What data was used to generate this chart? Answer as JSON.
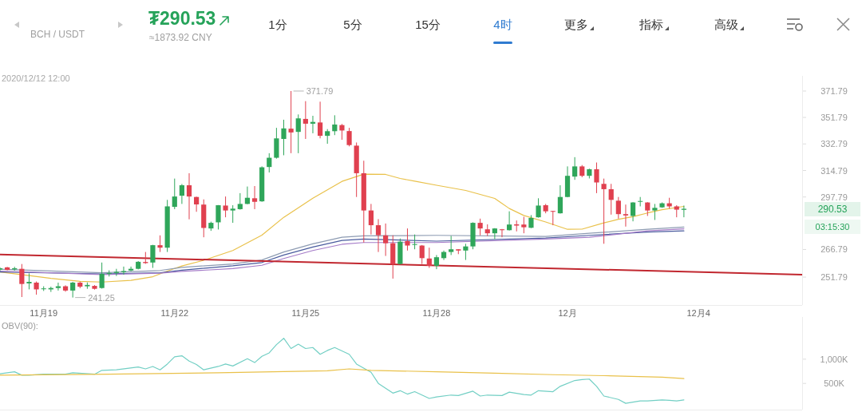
{
  "chart_data": [
    {
      "type": "candlestick",
      "title": "BCH / USDT",
      "subtitle": "₮290.53",
      "x": [
        "2020-11-18T00:00",
        "2020-11-18T04:00",
        "2020-11-18T08:00",
        "2020-11-18T12:00",
        "2020-11-18T16:00",
        "2020-11-18T20:00",
        "2020-11-19T00:00",
        "2020-11-19T04:00",
        "2020-11-19T08:00",
        "2020-11-19T12:00",
        "2020-11-19T16:00",
        "2020-11-19T20:00",
        "2020-11-20T00:00",
        "2020-11-20T04:00",
        "2020-11-20T08:00",
        "2020-11-20T12:00",
        "2020-11-20T16:00",
        "2020-11-20T20:00",
        "2020-11-21T00:00",
        "2020-11-21T04:00",
        "2020-11-21T08:00",
        "2020-11-21T12:00",
        "2020-11-21T16:00",
        "2020-11-21T20:00",
        "2020-11-22T00:00",
        "2020-11-22T04:00",
        "2020-11-22T08:00",
        "2020-11-22T12:00",
        "2020-11-22T16:00",
        "2020-11-22T20:00",
        "2020-11-23T00:00",
        "2020-11-23T04:00",
        "2020-11-23T08:00",
        "2020-11-23T12:00",
        "2020-11-23T16:00",
        "2020-11-23T20:00",
        "2020-11-24T00:00",
        "2020-11-24T04:00",
        "2020-11-24T08:00",
        "2020-11-24T12:00",
        "2020-11-24T16:00",
        "2020-11-24T20:00",
        "2020-11-25T00:00",
        "2020-11-25T04:00",
        "2020-11-25T08:00",
        "2020-11-25T12:00",
        "2020-11-25T16:00",
        "2020-11-25T20:00",
        "2020-11-26T00:00",
        "2020-11-26T04:00",
        "2020-11-26T08:00",
        "2020-11-26T12:00",
        "2020-11-26T16:00",
        "2020-11-26T20:00",
        "2020-11-27T00:00",
        "2020-11-27T04:00",
        "2020-11-27T08:00",
        "2020-11-27T12:00",
        "2020-11-27T16:00",
        "2020-11-27T20:00",
        "2020-11-28T00:00",
        "2020-11-28T04:00",
        "2020-11-28T08:00",
        "2020-11-28T12:00",
        "2020-11-28T16:00",
        "2020-11-28T20:00",
        "2020-11-29T00:00",
        "2020-11-29T04:00",
        "2020-11-29T08:00",
        "2020-11-29T12:00",
        "2020-11-29T16:00",
        "2020-11-29T20:00",
        "2020-11-30T00:00",
        "2020-11-30T04:00",
        "2020-11-30T08:00",
        "2020-11-30T12:00",
        "2020-11-30T16:00",
        "2020-11-30T20:00",
        "2020-12-01T00:00",
        "2020-12-01T04:00",
        "2020-12-01T08:00",
        "2020-12-01T12:00",
        "2020-12-01T16:00",
        "2020-12-01T20:00",
        "2020-12-02T00:00",
        "2020-12-02T04:00",
        "2020-12-02T08:00",
        "2020-12-02T12:00",
        "2020-12-02T16:00",
        "2020-12-02T20:00",
        "2020-12-03T00:00",
        "2020-12-03T04:00",
        "2020-12-03T08:00",
        "2020-12-03T12:00",
        "2020-12-03T16:00"
      ],
      "ohlc": [
        [
          255.8,
          257.0,
          255.0,
          256.5
        ],
        [
          257.0,
          257.2,
          255.4,
          255.6
        ],
        [
          255.9,
          257.3,
          255.2,
          256.5
        ],
        [
          256.2,
          258.8,
          241.5,
          248.2
        ],
        [
          248.5,
          253.8,
          245.4,
          249.3
        ],
        [
          248.9,
          249.5,
          242.7,
          245.4
        ],
        [
          245.6,
          247.0,
          244.6,
          245.9
        ],
        [
          245.4,
          246.8,
          244.1,
          246.1
        ],
        [
          246.1,
          248.9,
          244.8,
          247.0
        ],
        [
          247.0,
          247.5,
          244.2,
          244.8
        ],
        [
          244.8,
          249.3,
          241.25,
          248.9
        ],
        [
          248.9,
          249.4,
          246.0,
          246.8
        ],
        [
          247.0,
          249.0,
          245.7,
          247.7
        ],
        [
          247.2,
          247.6,
          245.3,
          245.7
        ],
        [
          246.1,
          259.6,
          245.8,
          253.5
        ],
        [
          253.5,
          255.4,
          252.1,
          254.0
        ],
        [
          254.0,
          256.2,
          252.4,
          254.6
        ],
        [
          254.4,
          257.4,
          253.1,
          255.0
        ],
        [
          255.3,
          257.4,
          254.9,
          256.2
        ],
        [
          256.2,
          260.4,
          255.9,
          260.0
        ],
        [
          259.9,
          265.4,
          258.9,
          259.3
        ],
        [
          259.6,
          269.4,
          256.7,
          269.2
        ],
        [
          269.2,
          274.8,
          265.4,
          267.8
        ],
        [
          267.8,
          296.0,
          265.4,
          292.0
        ],
        [
          291.7,
          309.5,
          290.3,
          298.1
        ],
        [
          298.6,
          306.0,
          293.5,
          305.2
        ],
        [
          305.2,
          313.0,
          284.2,
          298.1
        ],
        [
          297.8,
          298.0,
          288.7,
          293.2
        ],
        [
          293.1,
          296.3,
          273.7,
          279.1
        ],
        [
          278.8,
          282.8,
          277.4,
          282.1
        ],
        [
          282.4,
          292.8,
          278.2,
          292.7
        ],
        [
          292.5,
          298.1,
          285.4,
          289.5
        ],
        [
          289.5,
          292.7,
          282.1,
          290.6
        ],
        [
          290.3,
          300.2,
          290.0,
          293.5
        ],
        [
          293.5,
          304.4,
          293.3,
          297.3
        ],
        [
          297.0,
          304.7,
          290.3,
          294.8
        ],
        [
          295.1,
          317.5,
          294.8,
          316.9
        ],
        [
          317.1,
          326.4,
          313.5,
          323.3
        ],
        [
          323.3,
          344.2,
          322.7,
          336.7
        ],
        [
          336.3,
          350.1,
          325.0,
          343.8
        ],
        [
          343.6,
          371.79,
          326.4,
          340.9
        ],
        [
          341.3,
          354.0,
          326.4,
          351.1
        ],
        [
          350.7,
          364.0,
          336.3,
          347.2
        ],
        [
          347.2,
          353.0,
          340.3,
          348.5
        ],
        [
          348.1,
          363.6,
          336.7,
          338.5
        ],
        [
          338.5,
          343.3,
          332.9,
          341.8
        ],
        [
          341.8,
          353.4,
          339.0,
          346.6
        ],
        [
          346.2,
          347.0,
          335.7,
          342.3
        ],
        [
          341.9,
          344.2,
          331.1,
          332.0
        ],
        [
          331.6,
          333.8,
          297.8,
          313.0
        ],
        [
          313.0,
          321.3,
          270.7,
          289.5
        ],
        [
          289.5,
          293.5,
          275.3,
          280.7
        ],
        [
          280.7,
          284.3,
          265.4,
          274.9
        ],
        [
          274.8,
          281.7,
          263.2,
          270.3
        ],
        [
          270.3,
          274.8,
          251.0,
          258.8
        ],
        [
          258.8,
          273.0,
          258.6,
          271.2
        ],
        [
          271.5,
          278.8,
          266.2,
          269.0
        ],
        [
          269.4,
          275.3,
          266.9,
          269.8
        ],
        [
          269.0,
          269.3,
          258.8,
          262.0
        ],
        [
          261.8,
          267.8,
          256.7,
          257.8
        ],
        [
          257.8,
          263.7,
          256.0,
          262.5
        ],
        [
          262.0,
          266.2,
          261.0,
          265.4
        ],
        [
          265.4,
          274.5,
          263.7,
          266.9
        ],
        [
          266.9,
          267.0,
          264.2,
          266.2
        ],
        [
          266.2,
          270.0,
          261.0,
          268.5
        ],
        [
          268.5,
          282.4,
          266.9,
          282.1
        ],
        [
          282.1,
          284.6,
          274.8,
          278.8
        ],
        [
          278.3,
          281.2,
          274.5,
          276.0
        ],
        [
          276.0,
          279.0,
          272.7,
          278.8
        ],
        [
          278.3,
          278.5,
          273.7,
          277.8
        ],
        [
          277.8,
          289.0,
          277.6,
          281.1
        ],
        [
          281.2,
          283.5,
          277.1,
          280.5
        ],
        [
          281.1,
          285.7,
          276.0,
          279.5
        ],
        [
          279.2,
          286.7,
          279.0,
          285.0
        ],
        [
          285.4,
          297.0,
          285.2,
          292.5
        ],
        [
          292.7,
          293.5,
          287.8,
          289.0
        ],
        [
          289.2,
          289.3,
          280.7,
          289.0
        ],
        [
          287.8,
          305.2,
          287.6,
          297.8
        ],
        [
          297.8,
          317.5,
          297.6,
          311.3
        ],
        [
          310.8,
          323.7,
          308.7,
          317.5
        ],
        [
          317.5,
          318.4,
          310.4,
          311.3
        ],
        [
          311.3,
          316.0,
          309.6,
          315.6
        ],
        [
          315.6,
          320.1,
          300.2,
          307.0
        ],
        [
          306.1,
          309.5,
          270.0,
          302.7
        ],
        [
          302.7,
          306.1,
          287.0,
          296.0
        ],
        [
          295.5,
          297.8,
          284.6,
          287.3
        ],
        [
          287.3,
          293.1,
          279.9,
          286.5
        ],
        [
          286.2,
          294.6,
          283.0,
          294.4
        ],
        [
          295.1,
          297.8,
          292.0,
          295.3
        ],
        [
          294.4,
          294.6,
          286.2,
          289.5
        ],
        [
          289.5,
          293.5,
          283.8,
          291.1
        ],
        [
          291.4,
          294.4,
          291.1,
          293.9
        ],
        [
          293.9,
          297.3,
          290.6,
          292.0
        ],
        [
          292.0,
          292.7,
          285.4,
          290.0
        ],
        [
          289.9,
          292.5,
          285.4,
          290.53
        ]
      ],
      "series": [
        {
          "type": "line",
          "color": "#e9c14a",
          "x": [
            "2020-11-18T00:00",
            "2020-11-18T16:00",
            "2020-11-19T04:00",
            "2020-11-19T20:00",
            "2020-11-20T08:00",
            "2020-11-21T00:00",
            "2020-11-21T12:00",
            "2020-11-21T20:00",
            "2020-11-22T04:00",
            "2020-11-22T16:00",
            "2020-11-23T08:00",
            "2020-11-24T00:00",
            "2020-11-24T12:00",
            "2020-11-25T04:00",
            "2020-11-25T20:00",
            "2020-11-26T08:00",
            "2020-11-26T20:00",
            "2020-11-27T04:00",
            "2020-11-27T12:00",
            "2020-11-28T00:00",
            "2020-11-28T16:00",
            "2020-11-29T08:00",
            "2020-11-29T16:00",
            "2020-11-30T00:00",
            "2020-11-30T12:00",
            "2020-12-01T00:00",
            "2020-12-01T08:00",
            "2020-12-01T20:00",
            "2020-12-02T04:00",
            "2020-12-02T12:00",
            "2020-12-02T20:00",
            "2020-12-03T04:00",
            "2020-12-03T16:00"
          ],
          "values": [
            254.5,
            252.6,
            251.1,
            249.6,
            249.2,
            250.1,
            252.0,
            255.0,
            257.7,
            260.8,
            266.2,
            274.9,
            285.4,
            297.0,
            307.7,
            312.4,
            312.2,
            309.6,
            307.8,
            305.2,
            301.9,
            296.9,
            290.7,
            286.5,
            282.6,
            278.3,
            278.4,
            282.1,
            284.2,
            285.8,
            288.0,
            290.0,
            292.0
          ]
        },
        {
          "type": "line",
          "color": "#8d9bb2",
          "x": [
            "2020-11-18T00:00",
            "2020-11-20T08:00",
            "2020-11-21T16:00",
            "2020-11-22T04:00",
            "2020-11-23T08:00",
            "2020-11-24T00:00",
            "2020-11-24T12:00",
            "2020-11-25T04:00",
            "2020-11-25T20:00",
            "2020-11-26T08:00",
            "2020-11-28T00:00",
            "2020-11-30T12:00",
            "2020-12-01T12:00",
            "2020-12-02T20:00",
            "2020-12-03T16:00"
          ],
          "values": [
            256.0,
            254.1,
            255.3,
            257.0,
            258.8,
            261.0,
            265.4,
            270.0,
            273.7,
            274.5,
            274.8,
            274.2,
            276.0,
            278.3,
            279.6
          ]
        },
        {
          "type": "line",
          "color": "#4a5c9e",
          "x": [
            "2020-11-18T00:00",
            "2020-11-20T08:00",
            "2020-11-21T16:00",
            "2020-11-22T04:00",
            "2020-11-23T08:00",
            "2020-11-24T00:00",
            "2020-11-24T12:00",
            "2020-11-25T04:00",
            "2020-11-25T20:00",
            "2020-11-26T08:00",
            "2020-11-28T00:00",
            "2020-11-30T12:00",
            "2020-12-01T12:00",
            "2020-12-02T20:00",
            "2020-12-03T16:00"
          ],
          "values": [
            254.5,
            253.5,
            254.1,
            255.5,
            257.8,
            259.6,
            263.7,
            268.2,
            271.9,
            272.7,
            271.5,
            273.3,
            274.8,
            276.7,
            277.4
          ]
        },
        {
          "type": "line",
          "color": "#a57cc8",
          "x": [
            "2020-11-18T00:00",
            "2020-11-20T08:00",
            "2020-11-21T16:00",
            "2020-11-22T04:00",
            "2020-11-23T08:00",
            "2020-11-24T00:00",
            "2020-11-24T12:00",
            "2020-11-25T04:00",
            "2020-11-25T20:00",
            "2020-11-26T08:00",
            "2020-11-28T00:00",
            "2020-11-30T12:00",
            "2020-12-01T12:00",
            "2020-12-02T20:00",
            "2020-12-03T16:00"
          ],
          "values": [
            255.0,
            253.1,
            253.9,
            254.8,
            256.3,
            258.1,
            261.8,
            266.2,
            269.7,
            270.7,
            270.7,
            272.7,
            273.7,
            277.4,
            278.6
          ]
        },
        {
          "type": "line",
          "color": "#c1272f",
          "x": [
            "2020-11-18T00:00",
            "2020-12-06T09:00"
          ],
          "values": [
            264.0,
            253.1
          ]
        }
      ],
      "xlim": [
        "2020-11-18T00:00",
        "2020-12-06T09:00"
      ],
      "xticks": [
        {
          "value": "2020-11-19",
          "label": "11月19"
        },
        {
          "value": "2020-11-22",
          "label": "11月22"
        },
        {
          "value": "2020-11-25",
          "label": "11月25"
        },
        {
          "value": "2020-11-28",
          "label": "11月28"
        },
        {
          "value": "2020-12-01",
          "label": "12月"
        },
        {
          "value": "2020-12-04",
          "label": "12月4"
        }
      ],
      "ylim": [
        237.5,
        383.8
      ],
      "yticks": [
        251.79,
        266.79,
        297.79,
        314.79,
        332.79,
        351.79,
        371.79
      ],
      "log": "y",
      "annotations": [
        "≈1873.92 CNY",
        "1分",
        "5分",
        "15分",
        "4时",
        "更多",
        "指标",
        "高级",
        "2020/12/12 12:00",
        {
          "text": "371.79",
          "x": "2020-11-24T16:00",
          "y": 371.79
        },
        {
          "text": "241.25",
          "x": "2020-11-19T16:00",
          "y": 241.25
        },
        "290.53",
        "03:15:30"
      ]
    },
    {
      "type": "line",
      "title": "OBV(90):",
      "series": [
        {
          "color": "#72cfc4",
          "x": [
            "2020-11-18T00:00",
            "2020-11-18T08:00",
            "2020-11-18T12:00",
            "2020-11-18T16:00",
            "2020-11-19T00:00",
            "2020-11-19T12:00",
            "2020-11-19T16:00",
            "2020-11-20T04:00",
            "2020-11-20T08:00",
            "2020-11-20T16:00",
            "2020-11-21T04:00",
            "2020-11-21T08:00",
            "2020-11-21T12:00",
            "2020-11-21T16:00",
            "2020-11-21T20:00",
            "2020-11-22T00:00",
            "2020-11-22T04:00",
            "2020-11-22T08:00",
            "2020-11-22T12:00",
            "2020-11-22T16:00",
            "2020-11-23T00:00",
            "2020-11-23T04:00",
            "2020-11-23T08:00",
            "2020-11-23T16:00",
            "2020-11-23T20:00",
            "2020-11-24T00:00",
            "2020-11-24T04:00",
            "2020-11-24T08:00",
            "2020-11-24T12:00",
            "2020-11-24T16:00",
            "2020-11-24T20:00",
            "2020-11-25T00:00",
            "2020-11-25T04:00",
            "2020-11-25T08:00",
            "2020-11-25T12:00",
            "2020-11-25T16:00",
            "2020-11-26T00:00",
            "2020-11-26T04:00",
            "2020-11-26T12:00",
            "2020-11-26T16:00",
            "2020-11-27T00:00",
            "2020-11-27T04:00",
            "2020-11-27T08:00",
            "2020-11-27T12:00",
            "2020-11-27T20:00",
            "2020-11-28T00:00",
            "2020-11-28T08:00",
            "2020-11-28T12:00",
            "2020-11-28T20:00",
            "2020-11-29T00:00",
            "2020-11-29T04:00",
            "2020-11-29T12:00",
            "2020-11-29T16:00",
            "2020-11-30T00:00",
            "2020-11-30T04:00",
            "2020-11-30T08:00",
            "2020-11-30T16:00",
            "2020-11-30T20:00",
            "2020-12-01T04:00",
            "2020-12-01T08:00",
            "2020-12-01T12:00",
            "2020-12-01T16:00",
            "2020-12-01T20:00",
            "2020-12-02T04:00",
            "2020-12-02T08:00",
            "2020-12-02T16:00",
            "2020-12-02T20:00",
            "2020-12-03T04:00",
            "2020-12-03T08:00",
            "2020-12-03T12:00",
            "2020-12-03T16:00"
          ],
          "values": [
            700,
            740,
            670,
            670,
            690,
            690,
            720,
            690,
            770,
            780,
            840,
            800,
            850,
            780,
            900,
            1050,
            1070,
            960,
            890,
            780,
            850,
            900,
            860,
            1010,
            930,
            1060,
            1130,
            1300,
            1430,
            1220,
            1310,
            1220,
            1240,
            1100,
            1180,
            1240,
            1100,
            900,
            730,
            500,
            300,
            350,
            280,
            330,
            190,
            220,
            260,
            250,
            340,
            240,
            260,
            250,
            320,
            270,
            260,
            350,
            330,
            440,
            560,
            580,
            590,
            440,
            240,
            170,
            90,
            140,
            140,
            160,
            150,
            140,
            160
          ]
        },
        {
          "color": "#e9c14a",
          "x": [
            "2020-11-18T00:00",
            "2020-11-20T12:00",
            "2020-11-23T00:00",
            "2020-11-25T12:00",
            "2020-11-26T00:00",
            "2020-11-26T12:00",
            "2020-11-28T00:00",
            "2020-11-29T08:00",
            "2020-11-30T16:00",
            "2020-12-01T20:00",
            "2020-12-03T04:00",
            "2020-12-03T16:00"
          ],
          "values": [
            670,
            690,
            720,
            760,
            800,
            770,
            740,
            710,
            680,
            660,
            630,
            600
          ]
        }
      ],
      "xlim": [
        "2020-11-18T00:00",
        "2020-12-06T09:00"
      ],
      "ylim": [
        -40,
        1870
      ],
      "yticks": [
        {
          "value": 500,
          "label": "500K"
        },
        {
          "value": 1000,
          "label": "1,000K"
        }
      ],
      "tick_labels": "y"
    }
  ]
}
